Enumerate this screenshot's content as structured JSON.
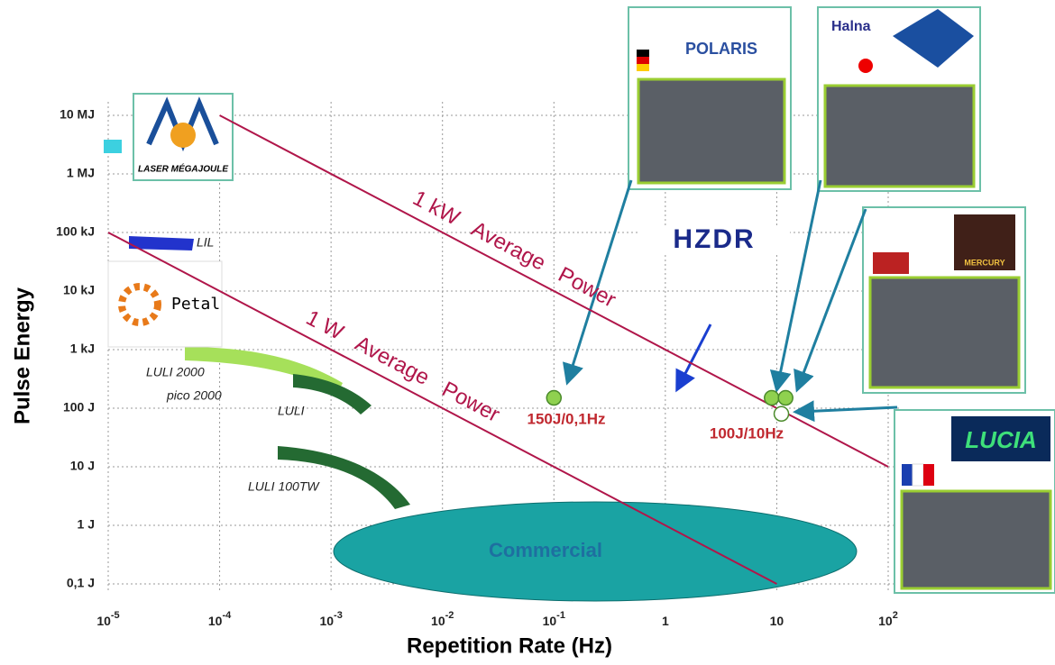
{
  "chart_data": {
    "type": "scatter",
    "log_x": true,
    "log_y": true,
    "grid": true,
    "x_label": "Repetition Rate (Hz)",
    "y_label": "Pulse Energy",
    "xlim": [
      1e-05,
      100
    ],
    "ylim": [
      0.1,
      10000000
    ],
    "xticks": [
      {
        "value": 1e-05,
        "label": "10",
        "exponent": "-5"
      },
      {
        "value": 0.0001,
        "label": "10",
        "exponent": "-4"
      },
      {
        "value": 0.001,
        "label": "10",
        "exponent": "-3"
      },
      {
        "value": 0.01,
        "label": "10",
        "exponent": "-2"
      },
      {
        "value": 0.1,
        "label": "10",
        "exponent": "-1"
      },
      1,
      10,
      {
        "value": 100,
        "label": "10",
        "exponent": "2"
      }
    ],
    "yticks": [
      {
        "value": 0.1,
        "label": "0,1 J"
      },
      {
        "value": 1,
        "label": "1 J"
      },
      {
        "value": 10,
        "label": "10 J"
      },
      {
        "value": 100,
        "label": "100 J"
      },
      {
        "value": 1000,
        "label": "1 kJ"
      },
      {
        "value": 10000,
        "label": "10 kJ"
      },
      {
        "value": 100000,
        "label": "100 kJ"
      },
      {
        "value": 1000000,
        "label": "1 MJ"
      },
      {
        "value": 10000000,
        "label": "10 MJ"
      }
    ],
    "lines": [
      {
        "name": "1 kW   Average   Power",
        "color": "#b0164a",
        "x": [
          0.0001,
          100
        ],
        "values": [
          10000000,
          10
        ]
      },
      {
        "name": "1 W   Average   Power",
        "color": "#b0164a",
        "x": [
          1e-05,
          10
        ],
        "values": [
          100000,
          0.1
        ]
      }
    ],
    "series": [
      {
        "color": "#8fd14f",
        "x": [
          0.1,
          9,
          12
        ],
        "values": [
          150,
          150,
          150
        ]
      },
      {
        "color": "#ffffff",
        "x": [
          11
        ],
        "values": [
          80
        ]
      }
    ],
    "annotations": [
      "150J/0,1Hz",
      "100J/10Hz",
      "LULI 2000",
      "pico 2000",
      "LULI",
      "LULI 100TW",
      "LIL",
      "Commercial"
    ]
  },
  "logos": [
    "LASER MÉGAJOULE",
    "Petal",
    "POLARIS",
    "Halna",
    "HZDR",
    "MERCURY",
    "LUCIA"
  ]
}
